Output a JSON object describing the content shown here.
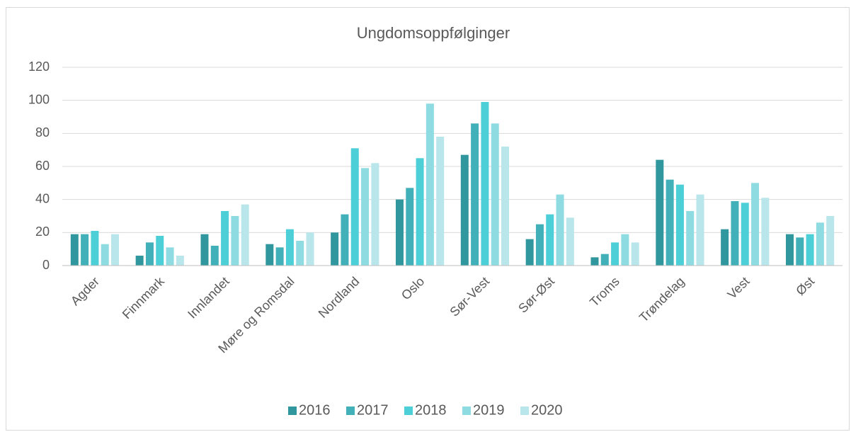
{
  "chart_data": {
    "type": "bar",
    "title": "Ungdomsoppfølginger",
    "categories": [
      "Agder",
      "Finnmark",
      "Innlandet",
      "Møre og Romsdal",
      "Nordland",
      "Oslo",
      "Sør-Vest",
      "Sør-Øst",
      "Troms",
      "Trøndelag",
      "Vest",
      "Øst"
    ],
    "series": [
      {
        "name": "2016",
        "color": "#31979e",
        "values": [
          19,
          6,
          19,
          13,
          20,
          40,
          67,
          16,
          5,
          64,
          22,
          19
        ]
      },
      {
        "name": "2017",
        "color": "#41b0b8",
        "values": [
          19,
          14,
          12,
          11,
          31,
          47,
          86,
          25,
          7,
          52,
          39,
          17
        ]
      },
      {
        "name": "2018",
        "color": "#4dcfd8",
        "values": [
          21,
          18,
          33,
          22,
          71,
          65,
          99,
          31,
          14,
          49,
          38,
          19
        ]
      },
      {
        "name": "2019",
        "color": "#8fdbe2",
        "values": [
          13,
          11,
          30,
          15,
          59,
          98,
          86,
          43,
          19,
          33,
          50,
          26
        ]
      },
      {
        "name": "2020",
        "color": "#b9e6eb",
        "values": [
          19,
          6,
          37,
          20,
          62,
          78,
          72,
          29,
          14,
          43,
          41,
          30
        ]
      }
    ],
    "ylim": [
      0,
      120
    ],
    "yticks": [
      0,
      20,
      40,
      60,
      80,
      100,
      120
    ],
    "grid": true,
    "legend": "bottom"
  }
}
